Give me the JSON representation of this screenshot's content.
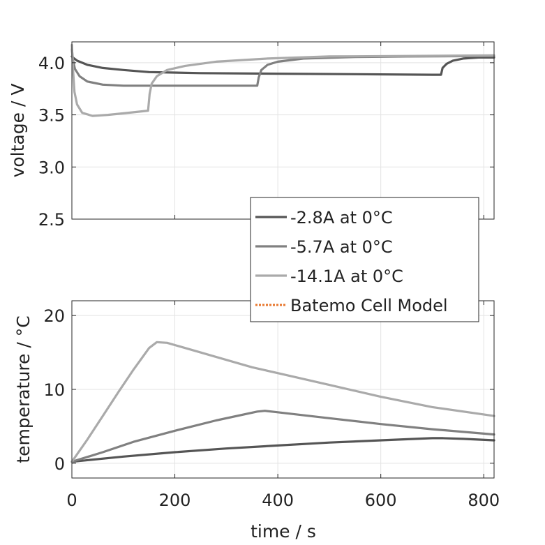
{
  "chart_data": [
    {
      "type": "line",
      "xlabel": "",
      "ylabel": "voltage / V",
      "xlim": [
        0,
        820
      ],
      "ylim": [
        2.5,
        4.2
      ],
      "x_ticks": [
        0,
        200,
        400,
        600,
        800
      ],
      "y_ticks": [
        2.5,
        3.0,
        3.5,
        4.0
      ],
      "y_tick_labels": [
        "2.5",
        "3.0",
        "3.5",
        "4.0"
      ],
      "grid": true,
      "series": [
        {
          "name": "-2.8A at 0°C",
          "color": "#555555",
          "points": [
            [
              0,
              4.06
            ],
            [
              2,
              4.05
            ],
            [
              10,
              4.02
            ],
            [
              30,
              3.98
            ],
            [
              60,
              3.95
            ],
            [
              100,
              3.93
            ],
            [
              150,
              3.91
            ],
            [
              250,
              3.9
            ],
            [
              400,
              3.895
            ],
            [
              550,
              3.89
            ],
            [
              700,
              3.885
            ],
            [
              717,
              3.885
            ],
            [
              720,
              3.95
            ],
            [
              728,
              3.99
            ],
            [
              740,
              4.02
            ],
            [
              760,
              4.04
            ],
            [
              790,
              4.05
            ],
            [
              820,
              4.05
            ]
          ]
        },
        {
          "name": "-5.7A at 0°C",
          "color": "#808080",
          "points": [
            [
              0,
              4.13
            ],
            [
              2,
              4.03
            ],
            [
              6,
              3.94
            ],
            [
              15,
              3.87
            ],
            [
              30,
              3.82
            ],
            [
              60,
              3.79
            ],
            [
              100,
              3.78
            ],
            [
              200,
              3.78
            ],
            [
              360,
              3.78
            ],
            [
              363,
              3.86
            ],
            [
              368,
              3.93
            ],
            [
              380,
              3.98
            ],
            [
              400,
              4.01
            ],
            [
              450,
              4.04
            ],
            [
              550,
              4.055
            ],
            [
              650,
              4.06
            ],
            [
              820,
              4.065
            ]
          ]
        },
        {
          "name": "-14.1A at 0°C",
          "color": "#aaaaaa",
          "points": [
            [
              0,
              4.17
            ],
            [
              2,
              3.95
            ],
            [
              5,
              3.72
            ],
            [
              10,
              3.6
            ],
            [
              20,
              3.52
            ],
            [
              40,
              3.49
            ],
            [
              70,
              3.5
            ],
            [
              110,
              3.52
            ],
            [
              148,
              3.54
            ],
            [
              151,
              3.7
            ],
            [
              155,
              3.8
            ],
            [
              165,
              3.87
            ],
            [
              185,
              3.93
            ],
            [
              220,
              3.97
            ],
            [
              280,
              4.01
            ],
            [
              380,
              4.04
            ],
            [
              500,
              4.06
            ],
            [
              650,
              4.065
            ],
            [
              820,
              4.07
            ]
          ]
        }
      ]
    },
    {
      "type": "line",
      "xlabel": "time / s",
      "ylabel": "temperature / °C",
      "xlim": [
        0,
        820
      ],
      "ylim": [
        -2,
        22
      ],
      "x_ticks": [
        0,
        200,
        400,
        600,
        800
      ],
      "x_tick_labels": [
        "0",
        "200",
        "400",
        "600",
        "800"
      ],
      "y_ticks": [
        0,
        10,
        20
      ],
      "y_tick_labels": [
        "0",
        "10",
        "20"
      ],
      "grid": true,
      "series": [
        {
          "name": "-2.8A at 0°C",
          "color": "#555555",
          "points": [
            [
              0,
              0.2
            ],
            [
              100,
              0.9
            ],
            [
              200,
              1.5
            ],
            [
              300,
              2.0
            ],
            [
              400,
              2.4
            ],
            [
              500,
              2.8
            ],
            [
              600,
              3.1
            ],
            [
              700,
              3.4
            ],
            [
              720,
              3.4
            ],
            [
              760,
              3.3
            ],
            [
              820,
              3.1
            ]
          ]
        },
        {
          "name": "-5.7A at 0°C",
          "color": "#808080",
          "points": [
            [
              0,
              0.2
            ],
            [
              60,
              1.5
            ],
            [
              120,
              2.9
            ],
            [
              200,
              4.4
            ],
            [
              280,
              5.8
            ],
            [
              360,
              7.0
            ],
            [
              375,
              7.1
            ],
            [
              400,
              6.9
            ],
            [
              500,
              6.1
            ],
            [
              600,
              5.3
            ],
            [
              700,
              4.6
            ],
            [
              820,
              3.9
            ]
          ]
        },
        {
          "name": "-14.1A at 0°C",
          "color": "#aaaaaa",
          "points": [
            [
              0,
              0.2
            ],
            [
              30,
              3.2
            ],
            [
              60,
              6.4
            ],
            [
              90,
              9.6
            ],
            [
              120,
              12.7
            ],
            [
              150,
              15.6
            ],
            [
              165,
              16.4
            ],
            [
              185,
              16.3
            ],
            [
              250,
              15.0
            ],
            [
              350,
              13.0
            ],
            [
              400,
              12.2
            ],
            [
              500,
              10.6
            ],
            [
              600,
              9.0
            ],
            [
              700,
              7.6
            ],
            [
              820,
              6.4
            ]
          ]
        }
      ]
    }
  ],
  "legend": {
    "placement": "between panels, right",
    "entries": [
      {
        "label": "-2.8A at 0°C",
        "color": "#555555",
        "style": "solid"
      },
      {
        "label": "-5.7A at 0°C",
        "color": "#808080",
        "style": "solid"
      },
      {
        "label": "-14.1A at 0°C",
        "color": "#aaaaaa",
        "style": "solid"
      },
      {
        "label": "Batemo Cell Model",
        "color": "#e8772e",
        "style": "dotted"
      }
    ]
  }
}
